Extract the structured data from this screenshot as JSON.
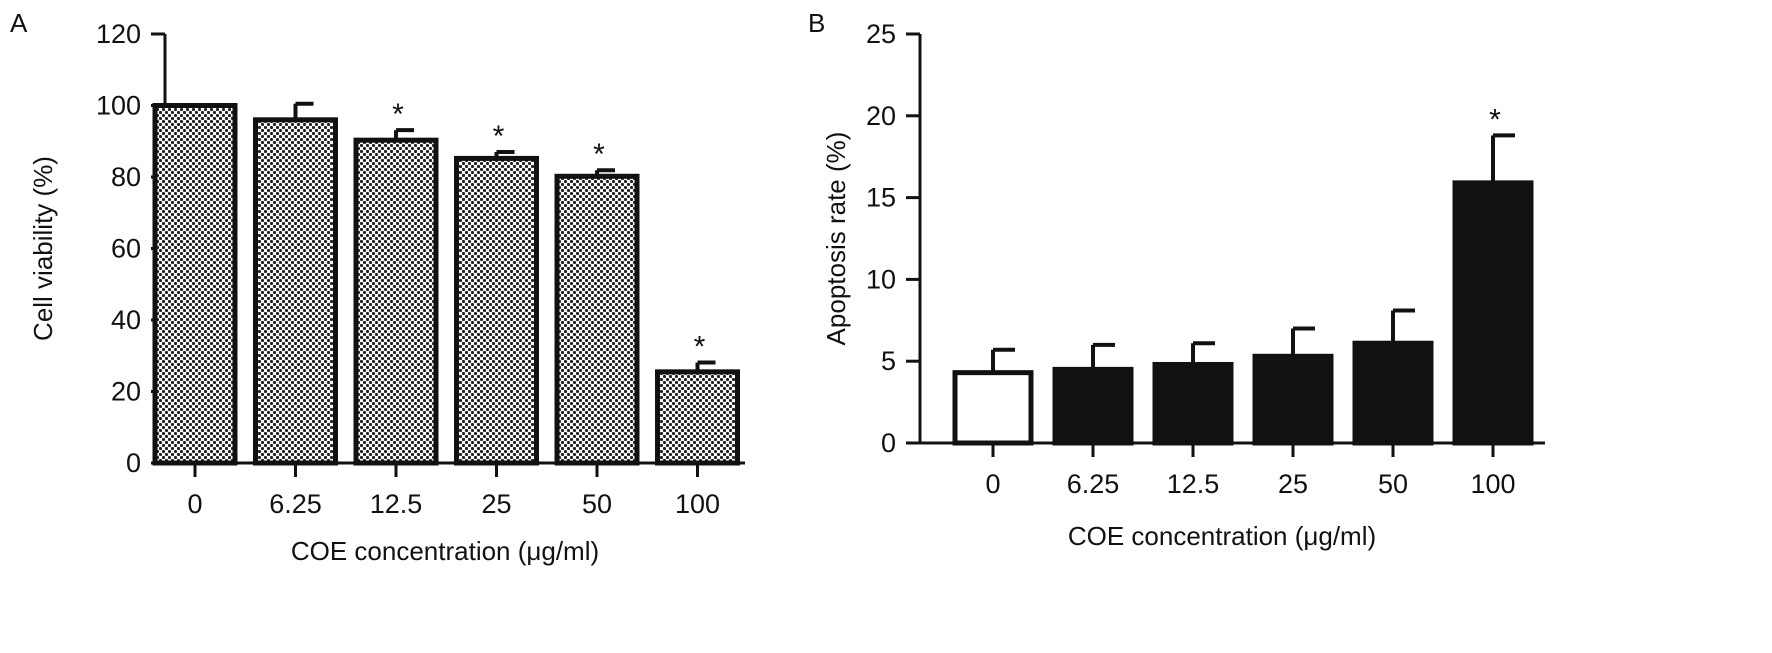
{
  "chart_data": [
    {
      "panel": "A",
      "type": "bar",
      "categories": [
        "0",
        "6.25",
        "12.5",
        "25",
        "50",
        "100"
      ],
      "values": [
        100,
        96,
        90.3,
        85.2,
        80.2,
        25.5
      ],
      "errors": [
        0,
        4.5,
        2.8,
        1.8,
        1.7,
        2.6
      ],
      "significance": [
        "",
        "",
        "*",
        "*",
        "*",
        "*"
      ],
      "xlabel": "COE concentration   (μg/ml)",
      "ylabel": "Cell viability (%)",
      "ylim": [
        0,
        120
      ],
      "yticks": [
        "0",
        "20",
        "40",
        "60",
        "80",
        "100",
        "120"
      ],
      "bar_fill": "dotted pattern",
      "grid": false
    },
    {
      "panel": "B",
      "type": "bar",
      "categories": [
        "0",
        "6.25",
        "12.5",
        "25",
        "50",
        "100"
      ],
      "values": [
        4.3,
        4.5,
        4.8,
        5.3,
        6.1,
        15.9
      ],
      "errors": [
        1.4,
        1.5,
        1.3,
        1.7,
        2.0,
        2.9
      ],
      "significance": [
        "",
        "",
        "",
        "",
        "",
        "*"
      ],
      "bar_colors": [
        "#ffffff",
        "#111111",
        "#111111",
        "#111111",
        "#111111",
        "#111111"
      ],
      "xlabel": "COE concentration (μg/ml)",
      "ylabel": "Apoptosis rate (%)",
      "ylim": [
        0,
        25
      ],
      "yticks": [
        "0",
        "5",
        "10",
        "15",
        "20",
        "25"
      ],
      "grid": false
    }
  ]
}
